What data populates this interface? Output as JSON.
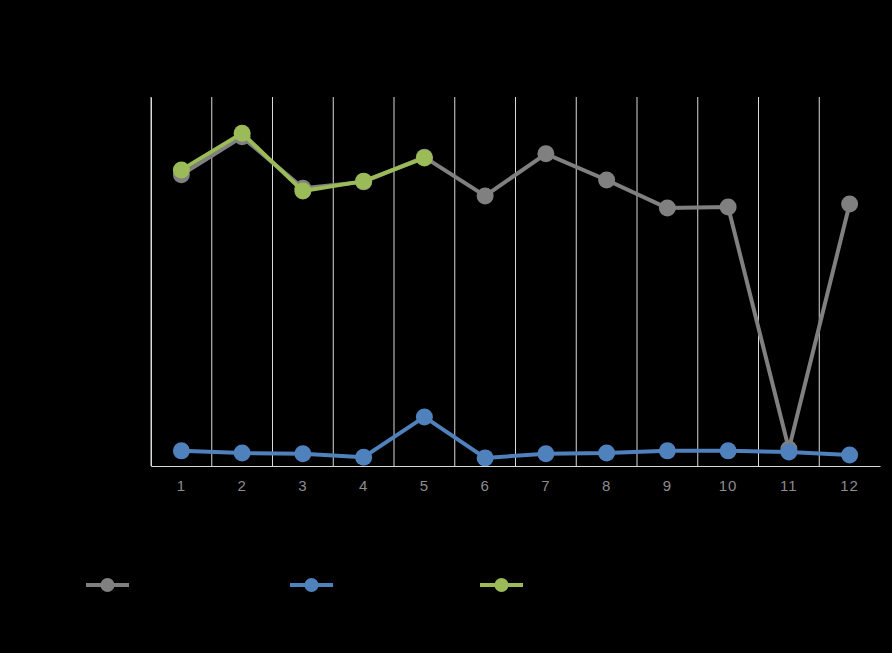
{
  "chart_data": {
    "type": "line",
    "categories": [
      "1",
      "2",
      "3",
      "4",
      "5",
      "6",
      "7",
      "8",
      "9",
      "10",
      "11",
      "12"
    ],
    "series": [
      {
        "color": "#808080",
        "marker": "circle",
        "values": [
          78.9,
          89.2,
          75.3,
          77.0,
          83.7,
          73.2,
          84.6,
          77.5,
          69.9,
          70.2,
          4.6,
          71.0
        ]
      },
      {
        "color": "#4f81bd",
        "marker": "circle",
        "values": [
          4.1,
          3.5,
          3.3,
          2.4,
          13.3,
          2.2,
          3.3,
          3.5,
          4.1,
          4.1,
          3.8,
          3.0
        ]
      },
      {
        "color": "#9bbb59",
        "marker": "circle",
        "values": [
          80.2,
          90.2,
          74.5,
          77.2,
          83.5,
          null,
          null,
          null,
          null,
          null,
          null,
          null
        ]
      }
    ],
    "ylim": [
      0,
      100
    ],
    "yticks": [],
    "grid": true,
    "tick_labels": "x",
    "legend": "bottom"
  }
}
